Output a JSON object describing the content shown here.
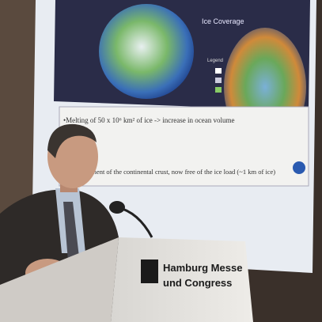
{
  "slide": {
    "heading": "Ice Coverage",
    "bullet_1": "•Melting of 50 x 10⁶ km² of ice -> increase in ocean volume",
    "bullet_2": "adjustment of the continental crust, now free of the ice load (~1 km of ice)",
    "legend_title": "Legend"
  },
  "podium": {
    "line_1": "Hamburg Messe",
    "line_2": "und Congress"
  }
}
